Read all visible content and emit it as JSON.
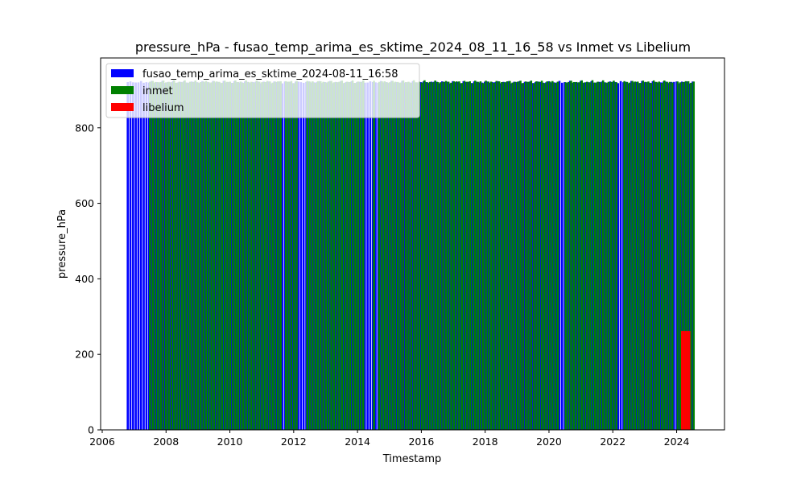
{
  "chart_data": {
    "type": "bar",
    "title": "pressure_hPa - fusao_temp_arima_es_sktime_2024_08_11_16_58 vs Inmet vs Libelium",
    "xlabel": "Timestamp",
    "ylabel": "pressure_hPa",
    "xlim": [
      2005.95,
      2025.5
    ],
    "ylim": [
      0,
      985
    ],
    "xticks": [
      "2006",
      "2008",
      "2010",
      "2012",
      "2014",
      "2016",
      "2018",
      "2020",
      "2022",
      "2024"
    ],
    "yticks": [
      "0",
      "200",
      "400",
      "600",
      "800"
    ],
    "legend_position": "top-left",
    "grid": false,
    "series": [
      {
        "name": "fusao_temp_arima_es_sktime_2024-08-11_16:58",
        "color": "#0000ff",
        "x_start": 2006.8,
        "x_end": 2024.55,
        "step_days": 30.5,
        "base_value": 921,
        "amplitude": 3.5,
        "gaps": []
      },
      {
        "name": "inmet",
        "color": "#008000",
        "x_start": 2007.5,
        "x_end": 2024.55,
        "step_days": 30.5,
        "base_value": 922,
        "amplitude": 4,
        "gaps": [
          [
            2011.65,
            2011.75
          ],
          [
            2012.1,
            2012.4
          ],
          [
            2014.25,
            2014.45
          ],
          [
            2014.58,
            2014.62
          ],
          [
            2020.3,
            2020.5
          ],
          [
            2022.15,
            2022.35
          ],
          [
            2023.9,
            2024.0
          ]
        ]
      },
      {
        "name": "libelium",
        "color": "#ff0000",
        "x_start": 2024.15,
        "x_end": 2024.42,
        "step_days": 7,
        "base_value": 262,
        "amplitude": 0,
        "gaps": []
      }
    ]
  }
}
